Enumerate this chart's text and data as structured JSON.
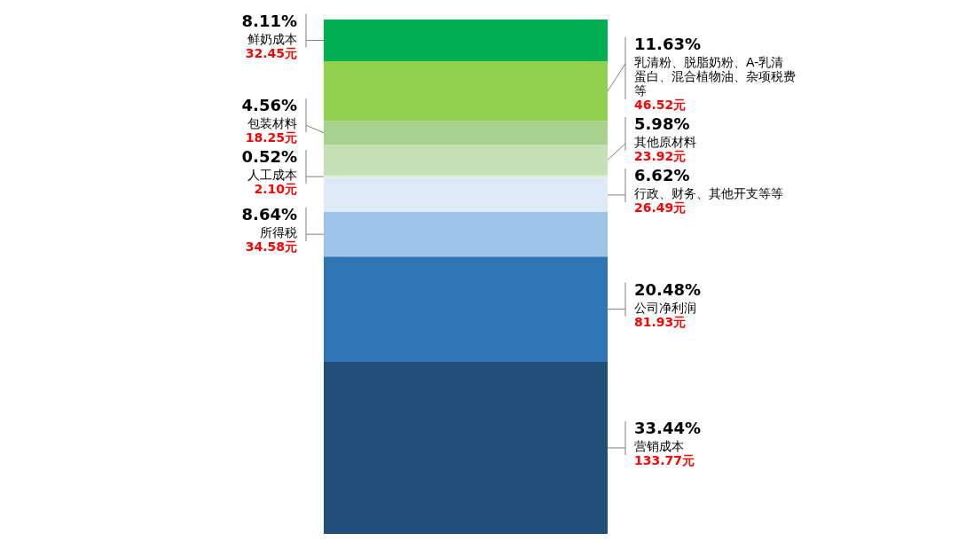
{
  "chart_data": {
    "type": "bar",
    "stacked": true,
    "categories": [
      null
    ],
    "legend": false,
    "series": [
      {
        "name": "营销成本",
        "color": "#1f4e79",
        "values": [
          33.44
        ],
        "value_labels": [
          "33.44%"
        ]
      },
      {
        "name": "公司净利润",
        "color": "#2e75b6",
        "values": [
          20.48
        ],
        "value_labels": [
          "20.48%"
        ]
      },
      {
        "name": "所得税",
        "color": "#9dc3e6",
        "values": [
          8.64
        ],
        "value_labels": [
          "8.64%"
        ]
      },
      {
        "name": "行政、财务、其他开支等等",
        "color": "#deebf7",
        "values": [
          6.62
        ],
        "value_labels": [
          "6.62%"
        ]
      },
      {
        "name": "人工成本",
        "color": "#e2f0d9",
        "values": [
          0.52
        ],
        "value_labels": [
          "0.52%"
        ]
      },
      {
        "name": "其他原材料",
        "color": "#c5e0b4",
        "values": [
          5.98
        ],
        "value_labels": [
          "5.98%"
        ]
      },
      {
        "name": "包装材料",
        "color": "#a9d18e",
        "values": [
          4.56
        ],
        "value_labels": [
          "4.56%"
        ]
      },
      {
        "name": "乳清粉、脱脂奶粉、A-乳清蛋白、混合植物油、杂项税费等",
        "color": "#92d050",
        "values": [
          11.63
        ],
        "value_labels": [
          "11.63%"
        ]
      },
      {
        "name": "鲜奶成本",
        "color": "#00b050",
        "values": [
          8.11
        ],
        "value_labels": [
          "8.11%"
        ]
      }
    ],
    "annotations": [
      "133.77元",
      "81.93元",
      "34.58元",
      "26.49元",
      "2.10元",
      "23.92元",
      "18.25元",
      "46.52元",
      "32.45元"
    ]
  }
}
